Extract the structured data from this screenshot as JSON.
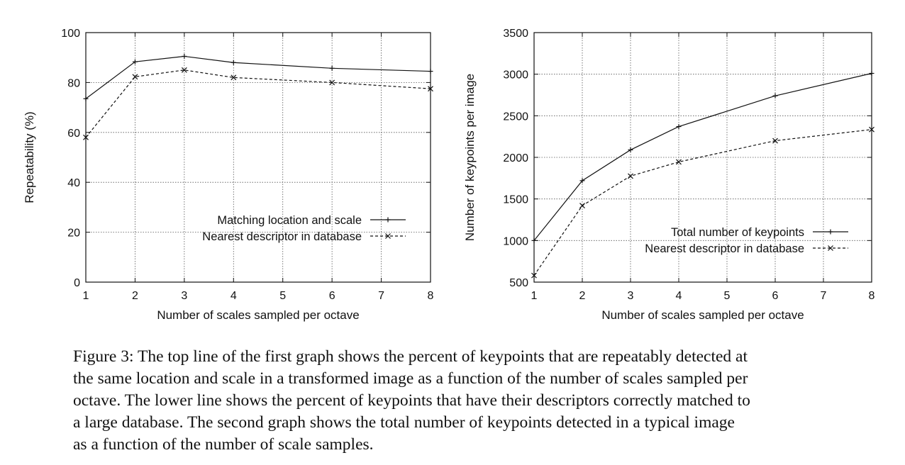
{
  "chart_data": [
    {
      "type": "line",
      "title": "",
      "xlabel": "Number of scales sampled per octave",
      "ylabel": "Repeatability (%)",
      "xlim": [
        1,
        8
      ],
      "ylim": [
        0,
        100
      ],
      "xticks": [
        1,
        2,
        3,
        4,
        5,
        6,
        7,
        8
      ],
      "yticks": [
        0,
        20,
        40,
        60,
        80,
        100
      ],
      "grid": true,
      "legend_position": "bottom-right",
      "series": [
        {
          "name": "Matching location and scale",
          "style": "solid",
          "marker": "+",
          "x": [
            1,
            2,
            3,
            4,
            6,
            8
          ],
          "y": [
            73.5,
            88.3,
            90.5,
            88,
            85.7,
            84.5
          ]
        },
        {
          "name": "Nearest descriptor in database",
          "style": "dashed",
          "marker": "x",
          "x": [
            1,
            2,
            3,
            4,
            6,
            8
          ],
          "y": [
            58,
            82.3,
            85,
            82,
            80,
            77.5
          ]
        }
      ]
    },
    {
      "type": "line",
      "title": "",
      "xlabel": "Number of scales sampled per octave",
      "ylabel": "Number of keypoints per image",
      "xlim": [
        1,
        8
      ],
      "ylim": [
        500,
        3500
      ],
      "xticks": [
        1,
        2,
        3,
        4,
        5,
        6,
        7,
        8
      ],
      "yticks": [
        500,
        1000,
        1500,
        2000,
        2500,
        3000,
        3500
      ],
      "grid": true,
      "legend_position": "bottom-right",
      "series": [
        {
          "name": "Total number of keypoints",
          "style": "solid",
          "marker": "+",
          "x": [
            1,
            2,
            3,
            4,
            6,
            8
          ],
          "y": [
            1000,
            1720,
            2090,
            2370,
            2740,
            3010
          ]
        },
        {
          "name": "Nearest descriptor in database",
          "style": "dashed",
          "marker": "x",
          "x": [
            1,
            2,
            3,
            4,
            6,
            8
          ],
          "y": [
            580,
            1420,
            1775,
            1945,
            2200,
            2335
          ]
        }
      ]
    }
  ],
  "caption": [
    "Figure 3: The top line of the first graph shows the percent of keypoints that are repeatably detected at",
    "the same location and scale in a transformed image as a function of the number of scales sampled per",
    "octave. The lower line shows the percent of keypoints that have their descriptors correctly matched to",
    "a large database.  The second graph shows the total number of keypoints detected in a typical image",
    "as a function of the number of scale samples."
  ]
}
